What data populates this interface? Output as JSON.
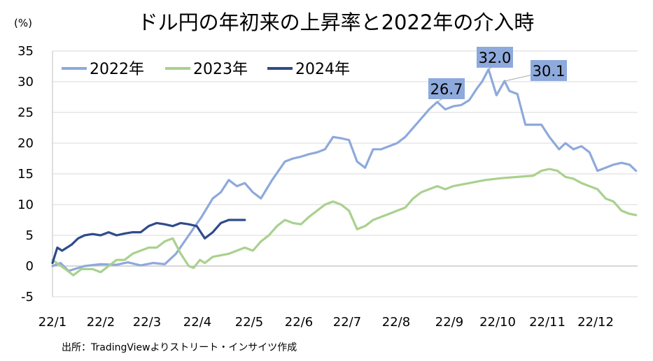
{
  "chart_data": {
    "type": "line",
    "title": "ドル円の年初来の上昇率と2022年の介入時",
    "unit_label": "(%)",
    "source": "出所：TradingViewよりストリート・インサイツ作成",
    "x_tick_labels": [
      "22/1",
      "22/2",
      "22/3",
      "22/4",
      "22/5",
      "22/6",
      "22/7",
      "22/8",
      "22/9",
      "22/10",
      "22/11",
      "22/12"
    ],
    "y_ticks": [
      -5,
      0,
      5,
      10,
      15,
      20,
      25,
      30,
      35
    ],
    "ylim": [
      -5,
      35
    ],
    "xlim": [
      0,
      365
    ],
    "grid": true,
    "legend_position": "top-left",
    "series": [
      {
        "name": "2022年",
        "color": "#8ea9db",
        "x": [
          0,
          5,
          10,
          20,
          30,
          40,
          47,
          55,
          63,
          70,
          77,
          85,
          93,
          100,
          105,
          110,
          115,
          120,
          125,
          130,
          137,
          145,
          150,
          155,
          160,
          165,
          170,
          175,
          180,
          185,
          190,
          195,
          200,
          205,
          210,
          215,
          220,
          230,
          235,
          240,
          245,
          250,
          255,
          260,
          265,
          268,
          272,
          277,
          282,
          285,
          290,
          295,
          300,
          305,
          310,
          313,
          316,
          320,
          325,
          330,
          335,
          340,
          345,
          350,
          355,
          360,
          364
        ],
        "y": [
          0,
          0.5,
          -0.8,
          0,
          0.3,
          0.2,
          0.6,
          0.1,
          0.5,
          0.3,
          2,
          5,
          8,
          11,
          12,
          14,
          13,
          13.5,
          12,
          11,
          14,
          17,
          17.5,
          17.8,
          18.2,
          18.5,
          19,
          21,
          20.8,
          20.5,
          17,
          16,
          19,
          19,
          19.5,
          20,
          21,
          24,
          25.5,
          26.7,
          25.5,
          26,
          26.2,
          27,
          29,
          30,
          32,
          27.8,
          30.1,
          28.5,
          28,
          23,
          23,
          23,
          21,
          20,
          19,
          20,
          19,
          19.5,
          18.5,
          15.5,
          16,
          16.5,
          16.8,
          16.5,
          15.5
        ]
      },
      {
        "name": "2023年",
        "color": "#a9d18e",
        "x": [
          0,
          8,
          13,
          18,
          25,
          30,
          35,
          40,
          45,
          50,
          60,
          65,
          70,
          75,
          80,
          85,
          88,
          92,
          95,
          100,
          110,
          115,
          120,
          125,
          130,
          135,
          140,
          145,
          150,
          155,
          160,
          165,
          170,
          175,
          180,
          185,
          190,
          195,
          200,
          205,
          210,
          215,
          220,
          225,
          230,
          235,
          240,
          245,
          250,
          260,
          270,
          280,
          290,
          300,
          305,
          310,
          315,
          320,
          325,
          330,
          335,
          340,
          345,
          350,
          355,
          360,
          364
        ],
        "y": [
          1,
          -0.5,
          -1.5,
          -0.5,
          -0.5,
          -1,
          0,
          1,
          1,
          2,
          3,
          3,
          4,
          4.5,
          2,
          0,
          -0.3,
          1,
          0.5,
          1.5,
          2,
          2.5,
          3,
          2.5,
          4,
          5,
          6.5,
          7.5,
          7,
          6.8,
          8,
          9,
          10,
          10.5,
          10,
          9,
          6,
          6.5,
          7.5,
          8,
          8.5,
          9,
          9.5,
          11,
          12,
          12.5,
          13,
          12.5,
          13,
          13.5,
          14,
          14.3,
          14.5,
          14.7,
          15.5,
          15.8,
          15.5,
          14.5,
          14.2,
          13.5,
          13,
          12.5,
          11,
          10.5,
          9,
          8.5,
          8.3
        ]
      },
      {
        "name": "2024年",
        "color": "#2f4b8a",
        "x": [
          0,
          3,
          6,
          9,
          12,
          16,
          20,
          25,
          30,
          35,
          40,
          45,
          50,
          55,
          60,
          65,
          70,
          75,
          80,
          85,
          90,
          95,
          100,
          105,
          110,
          115,
          120
        ],
        "y": [
          0.5,
          3,
          2.5,
          3,
          3.5,
          4.5,
          5,
          5.2,
          5,
          5.5,
          5,
          5.3,
          5.5,
          5.5,
          6.5,
          7,
          6.8,
          6.5,
          7,
          6.8,
          6.5,
          4.5,
          5.5,
          7,
          7.5,
          7.5,
          7.5
        ]
      }
    ],
    "annotations": [
      {
        "label": "26.7",
        "x": 240,
        "y": 26.7
      },
      {
        "label": "32.0",
        "x": 272,
        "y": 32.0
      },
      {
        "label": "30.1",
        "x": 282,
        "y": 30.1
      }
    ]
  }
}
